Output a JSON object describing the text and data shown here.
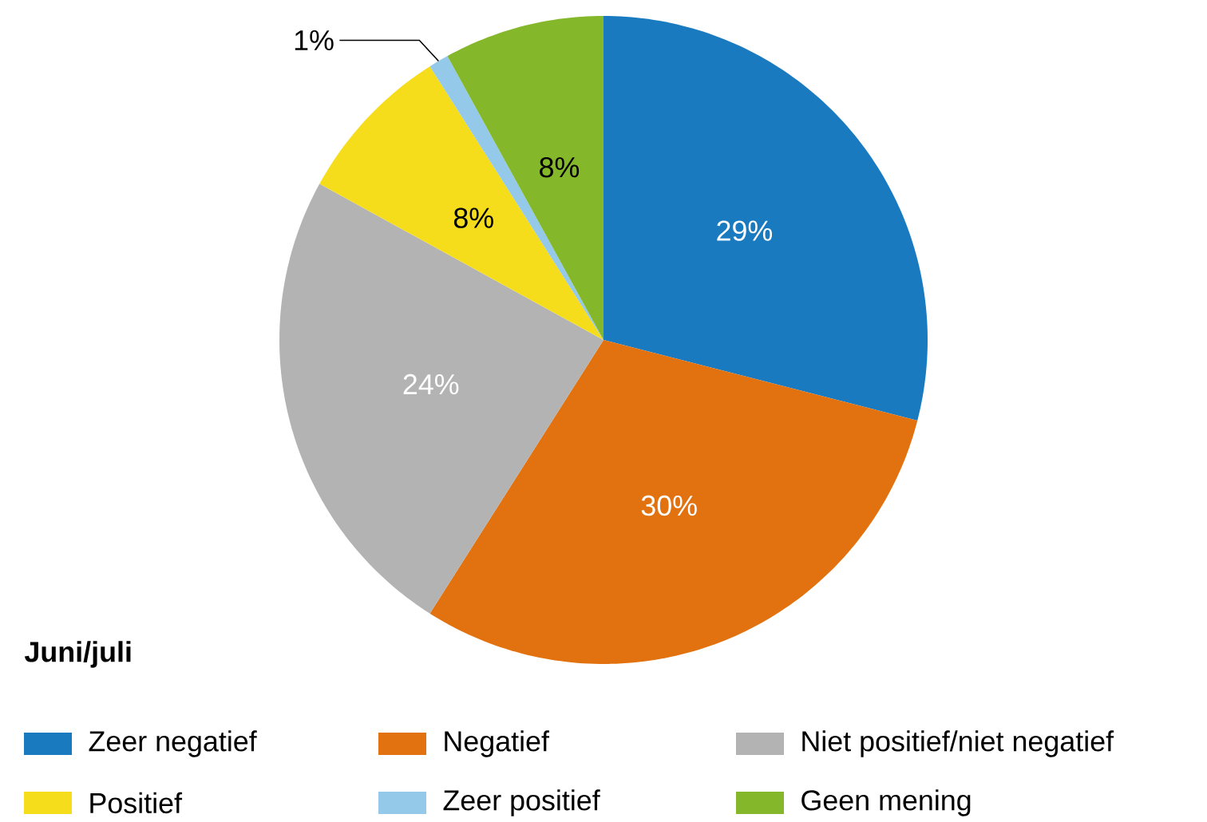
{
  "chart_data": {
    "type": "pie",
    "legend_title": "Juni/juli",
    "legend": "bottom",
    "categories": [
      "Zeer negatief",
      "Negatief",
      "Niet positief/niet negatief",
      "Positief",
      "Zeer positief",
      "Geen mening"
    ],
    "values": [
      29,
      30,
      24,
      8,
      1,
      8
    ],
    "colors": [
      "#1a7abf",
      "#e2720f",
      "#b3b3b3",
      "#f6dd1c",
      "#94c9ea",
      "#84b72a"
    ],
    "value_labels": [
      "29%",
      "30%",
      "24%",
      "8%",
      "1%",
      "8%"
    ]
  }
}
